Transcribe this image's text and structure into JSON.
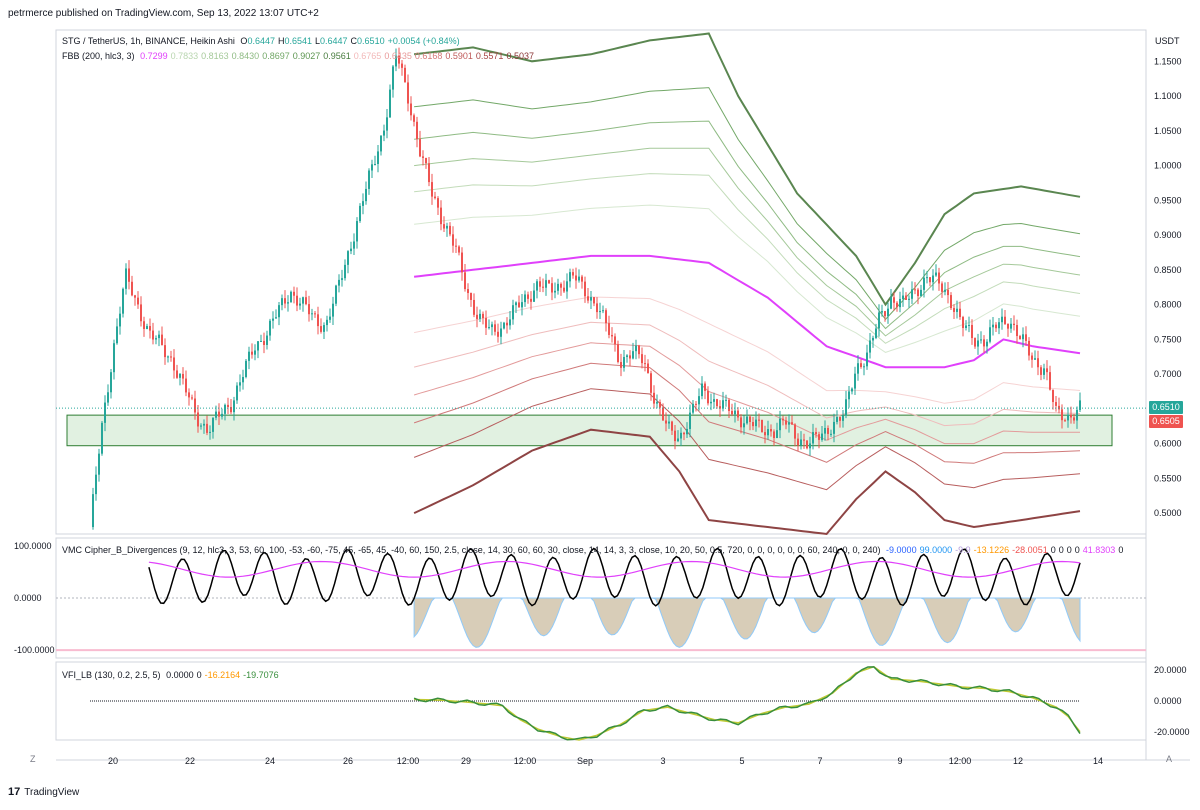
{
  "header": {
    "published_by": "petrmerce published on TradingView.com, Sep 13, 2022 13:07 UTC+2"
  },
  "footer": {
    "brand": "TradingView",
    "logo_glyph": "17"
  },
  "corners": {
    "left": "Z",
    "right": "A"
  },
  "chart_data": [
    {
      "type": "line",
      "title": "STG / TetherUS, 1h, BINANCE, Heikin Ashi",
      "ohlc": [
        {
          "label": "O",
          "value": "0.6447"
        },
        {
          "label": "H",
          "value": "0.6541"
        },
        {
          "label": "L",
          "value": "0.6447"
        },
        {
          "label": "C",
          "value": "0.6510"
        },
        {
          "label": "",
          "value": "+0.0054 (+0.84%)"
        }
      ],
      "currency": "USDT",
      "indicator_label": "FBB (200, hlc3, 3)",
      "indicator_values": [
        {
          "v": "0.7299",
          "color": "#e040fb"
        },
        {
          "v": "0.7833",
          "color": "#b9d6b0"
        },
        {
          "v": "0.8163",
          "color": "#a5c99a"
        },
        {
          "v": "0.8430",
          "color": "#8fbb84"
        },
        {
          "v": "0.8697",
          "color": "#73a868"
        },
        {
          "v": "0.9027",
          "color": "#5d9651"
        },
        {
          "v": "0.9561",
          "color": "#4a7d40"
        },
        {
          "v": "0.6765",
          "color": "#f2b8b8"
        },
        {
          "v": "0.6435",
          "color": "#e89a9a"
        },
        {
          "v": "0.6168",
          "color": "#d77a7a"
        },
        {
          "v": "0.5901",
          "color": "#c05b5b"
        },
        {
          "v": "0.5571",
          "color": "#a84646"
        },
        {
          "v": "0.5037",
          "color": "#8b3636"
        }
      ],
      "y_ticks": [
        "1.1500",
        "1.1000",
        "1.0500",
        "1.0000",
        "0.9500",
        "0.9000",
        "0.8500",
        "0.8000",
        "0.7500",
        "0.7000",
        "0.6510",
        "0.6505",
        "0.6000",
        "0.5500",
        "0.5000"
      ],
      "ylim": [
        0.47,
        1.195
      ],
      "last_price": "0.6510",
      "second_price": "0.6505",
      "support_zone": [
        0.597,
        0.641
      ],
      "price_series": [
        [
          0,
          0.48
        ],
        [
          2,
          0.62
        ],
        [
          4,
          0.74
        ],
        [
          6,
          0.84
        ],
        [
          8,
          0.8
        ],
        [
          10,
          0.76
        ],
        [
          12,
          0.74
        ],
        [
          14,
          0.72
        ],
        [
          16,
          0.68
        ],
        [
          18,
          0.64
        ],
        [
          20,
          0.62
        ],
        [
          22,
          0.64
        ],
        [
          24,
          0.66
        ],
        [
          26,
          0.7
        ],
        [
          28,
          0.74
        ],
        [
          30,
          0.76
        ],
        [
          32,
          0.79
        ],
        [
          34,
          0.82
        ],
        [
          36,
          0.8
        ],
        [
          38,
          0.78
        ],
        [
          40,
          0.77
        ],
        [
          42,
          0.82
        ],
        [
          44,
          0.88
        ],
        [
          46,
          0.94
        ],
        [
          48,
          1.0
        ],
        [
          50,
          1.06
        ],
        [
          52,
          1.16
        ],
        [
          54,
          1.1
        ],
        [
          56,
          1.02
        ],
        [
          58,
          0.96
        ],
        [
          60,
          0.92
        ],
        [
          62,
          0.88
        ],
        [
          64,
          0.82
        ],
        [
          66,
          0.78
        ],
        [
          68,
          0.76
        ],
        [
          70,
          0.77
        ],
        [
          72,
          0.79
        ],
        [
          74,
          0.81
        ],
        [
          76,
          0.83
        ],
        [
          78,
          0.82
        ],
        [
          80,
          0.83
        ],
        [
          82,
          0.84
        ],
        [
          84,
          0.82
        ],
        [
          86,
          0.8
        ],
        [
          88,
          0.76
        ],
        [
          90,
          0.72
        ],
        [
          92,
          0.73
        ],
        [
          94,
          0.72
        ],
        [
          96,
          0.66
        ],
        [
          98,
          0.62
        ],
        [
          100,
          0.61
        ],
        [
          102,
          0.64
        ],
        [
          104,
          0.68
        ],
        [
          106,
          0.66
        ],
        [
          108,
          0.65
        ],
        [
          110,
          0.64
        ],
        [
          112,
          0.63
        ],
        [
          114,
          0.62
        ],
        [
          116,
          0.62
        ],
        [
          118,
          0.63
        ],
        [
          120,
          0.61
        ],
        [
          122,
          0.6
        ],
        [
          124,
          0.61
        ],
        [
          126,
          0.63
        ],
        [
          128,
          0.64
        ],
        [
          130,
          0.71
        ],
        [
          132,
          0.73
        ],
        [
          134,
          0.78
        ],
        [
          136,
          0.81
        ],
        [
          138,
          0.8
        ],
        [
          140,
          0.82
        ],
        [
          142,
          0.84
        ],
        [
          144,
          0.83
        ],
        [
          146,
          0.81
        ],
        [
          148,
          0.77
        ],
        [
          150,
          0.75
        ],
        [
          152,
          0.75
        ],
        [
          154,
          0.77
        ],
        [
          156,
          0.78
        ],
        [
          158,
          0.75
        ],
        [
          160,
          0.72
        ],
        [
          162,
          0.71
        ],
        [
          164,
          0.64
        ],
        [
          166,
          0.64
        ],
        [
          168,
          0.651
        ]
      ],
      "basis_series": [
        [
          55,
          0.84
        ],
        [
          65,
          0.85
        ],
        [
          75,
          0.86
        ],
        [
          85,
          0.87
        ],
        [
          95,
          0.87
        ],
        [
          105,
          0.86
        ],
        [
          115,
          0.81
        ],
        [
          125,
          0.74
        ],
        [
          135,
          0.71
        ],
        [
          145,
          0.71
        ],
        [
          150,
          0.72
        ],
        [
          155,
          0.75
        ],
        [
          160,
          0.74
        ],
        [
          168,
          0.73
        ]
      ],
      "upper_outer_series": [
        [
          55,
          1.16
        ],
        [
          65,
          1.17
        ],
        [
          75,
          1.15
        ],
        [
          85,
          1.16
        ],
        [
          95,
          1.18
        ],
        [
          105,
          1.19
        ],
        [
          110,
          1.1
        ],
        [
          120,
          0.96
        ],
        [
          130,
          0.87
        ],
        [
          135,
          0.8
        ],
        [
          140,
          0.86
        ],
        [
          145,
          0.93
        ],
        [
          150,
          0.96
        ],
        [
          158,
          0.97
        ],
        [
          168,
          0.955
        ]
      ],
      "lower_outer_series": [
        [
          55,
          0.5
        ],
        [
          65,
          0.54
        ],
        [
          75,
          0.59
        ],
        [
          85,
          0.62
        ],
        [
          95,
          0.61
        ],
        [
          100,
          0.56
        ],
        [
          105,
          0.49
        ],
        [
          115,
          0.48
        ],
        [
          125,
          0.47
        ],
        [
          130,
          0.52
        ],
        [
          135,
          0.56
        ],
        [
          140,
          0.53
        ],
        [
          145,
          0.49
        ],
        [
          150,
          0.48
        ],
        [
          158,
          0.49
        ],
        [
          168,
          0.503
        ]
      ]
    },
    {
      "type": "line",
      "title": "VMC Cipher_B_Divergences (9, 12, hlc3, 3, 53, 60, 100, -53, -60, -75, 45, -65, 45, -40, 60, 150, 2.5, close, 14, 30, 60, 60, 30, close, 14, 14, 3, 3, close, 10, 20, 50, 0.5, 720, 0, 0, 0, 0, 0, 0, 60, 240, 0, 0, 240)",
      "values": [
        {
          "v": "-9.0000",
          "color": "#2962ff"
        },
        {
          "v": "99.0000",
          "color": "#2196f3"
        },
        {
          "v": "-9.9",
          "color": "#b39ddb"
        },
        {
          "v": "-13.1226",
          "color": "#ff9800"
        },
        {
          "v": "-28.0051",
          "color": "#ef5350"
        },
        {
          "v": "0",
          "color": "#131722"
        },
        {
          "v": "0",
          "color": "#131722"
        },
        {
          "v": "0",
          "color": "#131722"
        },
        {
          "v": "0",
          "color": "#131722"
        },
        {
          "v": "41.8303",
          "color": "#e040fb"
        },
        {
          "v": "0",
          "color": "#131722"
        }
      ],
      "y_ticks": [
        "100.0000",
        "0.0000",
        "-100.0000"
      ],
      "ylim": [
        -115,
        115
      ]
    },
    {
      "type": "line",
      "title": "VFI_LB (130, 0.2, 2.5, 5)",
      "values": [
        {
          "v": "0.0000",
          "color": "#131722"
        },
        {
          "v": "0",
          "color": "#131722"
        },
        {
          "v": "-16.2164",
          "color": "#ff9800"
        },
        {
          "v": "-19.7076",
          "color": "#388e3c"
        }
      ],
      "y_ticks": [
        "20.0000",
        "0.0000",
        "-20.0000"
      ],
      "ylim": [
        -25,
        25
      ],
      "vfi_series": [
        [
          55,
          1.0
        ],
        [
          60,
          0.5
        ],
        [
          65,
          -1
        ],
        [
          70,
          -3
        ],
        [
          73,
          -12
        ],
        [
          76,
          -18
        ],
        [
          80,
          -23
        ],
        [
          83,
          -25
        ],
        [
          86,
          -22
        ],
        [
          90,
          -15
        ],
        [
          94,
          -6
        ],
        [
          98,
          -4
        ],
        [
          102,
          -8
        ],
        [
          106,
          -12
        ],
        [
          110,
          -14
        ],
        [
          114,
          -8
        ],
        [
          118,
          -4
        ],
        [
          122,
          -2
        ],
        [
          126,
          5
        ],
        [
          130,
          18
        ],
        [
          133,
          22
        ],
        [
          136,
          14
        ],
        [
          140,
          13
        ],
        [
          144,
          11
        ],
        [
          148,
          9
        ],
        [
          152,
          8
        ],
        [
          156,
          6
        ],
        [
          160,
          2
        ],
        [
          162,
          -1
        ],
        [
          164,
          -4
        ],
        [
          166,
          -10
        ],
        [
          168,
          -19.7
        ]
      ]
    }
  ],
  "x_ticks": [
    "20",
    "22",
    "24",
    "26",
    "12:00",
    "29",
    "12:00",
    "Sep",
    "3",
    "5",
    "7",
    "9",
    "12:00",
    "12",
    "14"
  ]
}
